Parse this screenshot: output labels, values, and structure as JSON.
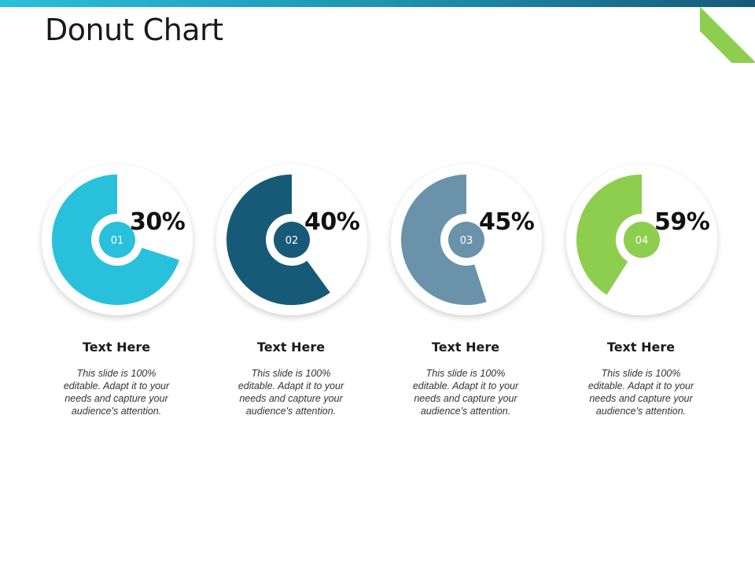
{
  "slide": {
    "title": "Donut Chart"
  },
  "colors": {
    "top_bar_start": "#29c0dc",
    "top_bar_end": "#155a78",
    "corner_accent": "#8dce4f"
  },
  "chart_data": {
    "type": "pie",
    "subtype": "donut",
    "title": "Donut Chart",
    "items": [
      {
        "number": "01",
        "value": 30,
        "label": "30%",
        "color": "#29c0dc",
        "heading": "Text Here",
        "description": "This slide is 100% editable. Adapt it to your needs and capture your audience's attention."
      },
      {
        "number": "02",
        "value": 40,
        "label": "40%",
        "color": "#175a77",
        "heading": "Text Here",
        "description": "This slide is 100% editable. Adapt it to your needs and capture your audience's attention."
      },
      {
        "number": "03",
        "value": 45,
        "label": "45%",
        "color": "#6a93ab",
        "heading": "Text Here",
        "description": "This slide is 100% editable. Adapt it to your needs and capture your audience's attention."
      },
      {
        "number": "04",
        "value": 59,
        "label": "59%",
        "color": "#8dce4f",
        "heading": "Text Here",
        "description": "This slide is 100% editable. Adapt it to your needs and capture your audience's attention."
      }
    ]
  }
}
